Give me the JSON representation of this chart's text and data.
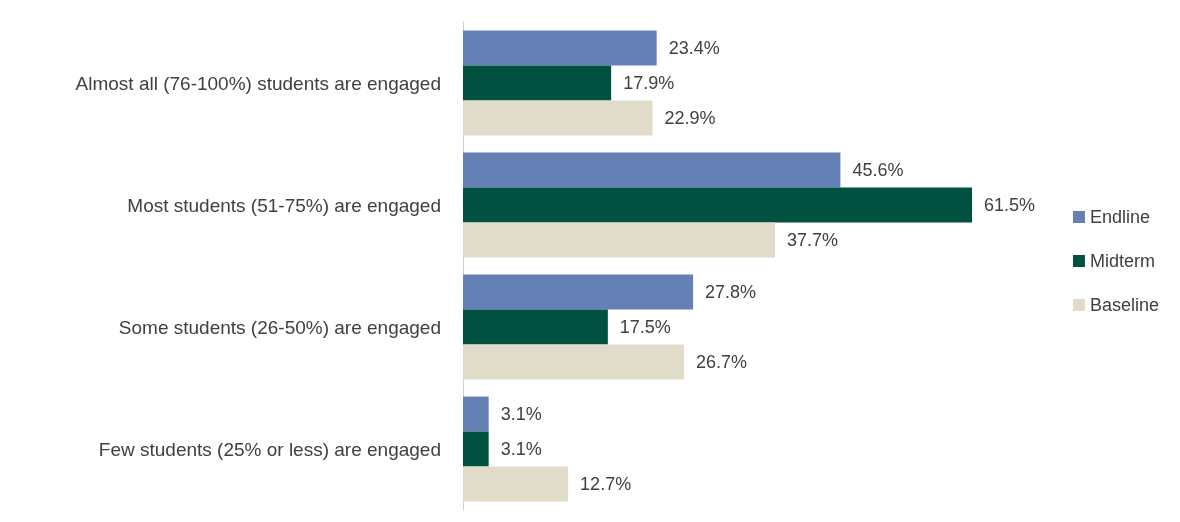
{
  "chart_data": {
    "type": "bar",
    "orientation": "horizontal",
    "categories": [
      "Almost all (76-100%) students are engaged",
      "Most students (51-75%) are engaged",
      "Some students (26-50%) are engaged",
      "Few students (25% or less) are engaged"
    ],
    "series": [
      {
        "name": "Endline",
        "color": "#6480b4",
        "values": [
          23.4,
          45.6,
          27.8,
          3.1
        ],
        "value_labels": [
          "23.4%",
          "45.6%",
          "27.8%",
          "3.1%"
        ]
      },
      {
        "name": "Midterm",
        "color": "#00513f",
        "values": [
          17.9,
          61.5,
          17.5,
          3.1
        ],
        "value_labels": [
          "17.9%",
          "61.5%",
          "17.5%",
          "3.1%"
        ]
      },
      {
        "name": "Baseline",
        "color": "#e1dbc9",
        "values": [
          22.9,
          37.7,
          26.7,
          12.7
        ],
        "value_labels": [
          "22.9%",
          "37.7%",
          "26.7%",
          "12.7%"
        ]
      }
    ],
    "legend": "right"
  }
}
